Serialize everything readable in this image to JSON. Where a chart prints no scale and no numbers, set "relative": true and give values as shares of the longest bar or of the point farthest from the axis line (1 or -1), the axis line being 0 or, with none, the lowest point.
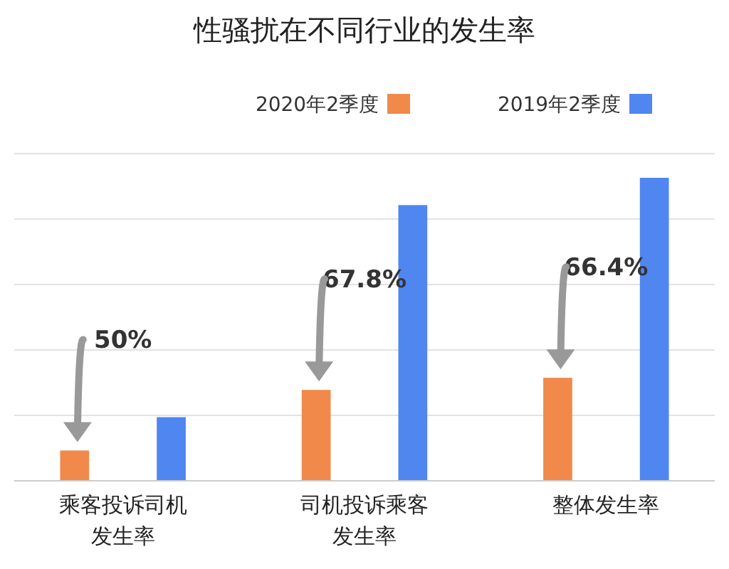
{
  "chart_data": {
    "type": "bar",
    "title": "性骚扰在不同行业的发生率",
    "relative": true,
    "grid": true,
    "legend": "top right",
    "categories": [
      "乘客投诉司机发生率",
      "司机投诉乘客发生率",
      "整体发生率"
    ],
    "series": [
      {
        "name": "2020年2季度",
        "color": "#f0894a",
        "values": [
          0.1,
          0.3,
          0.34
        ]
      },
      {
        "name": "2019年2季度",
        "color": "#4f86f0",
        "values": [
          0.21,
          0.91,
          1
        ]
      }
    ],
    "annotations": [
      "50%",
      "67.8%",
      "66.4%"
    ]
  }
}
